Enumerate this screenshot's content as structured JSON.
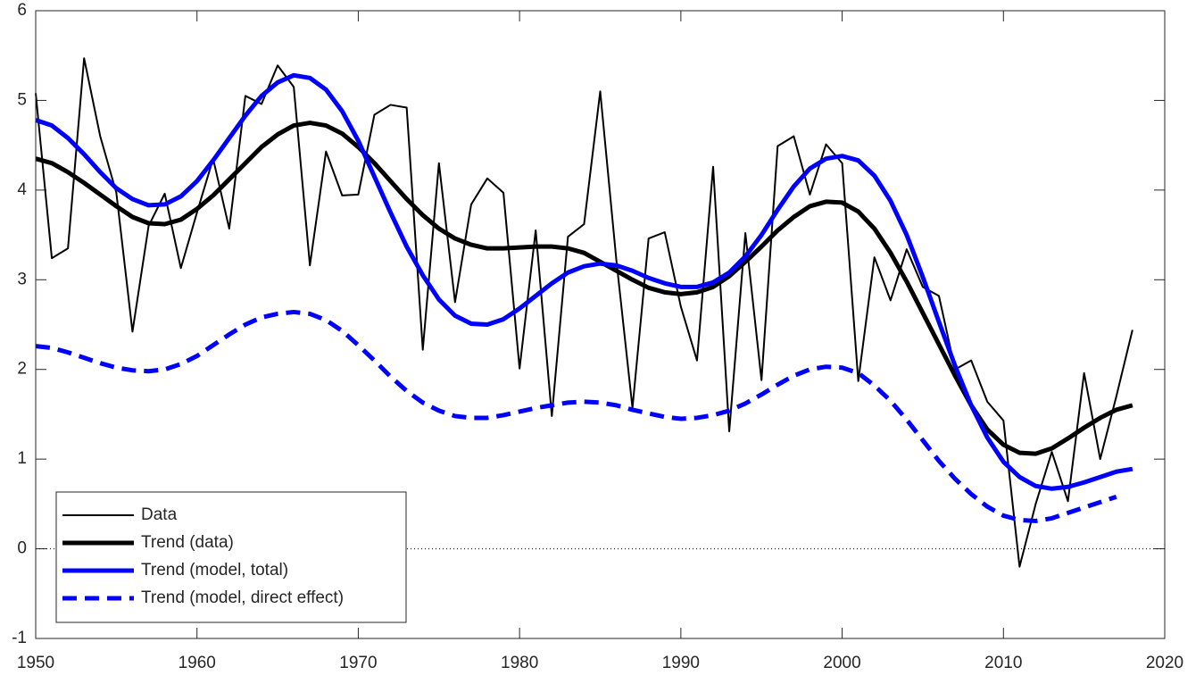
{
  "chart_data": {
    "type": "line",
    "x": [
      1950,
      1951,
      1952,
      1953,
      1954,
      1955,
      1956,
      1957,
      1958,
      1959,
      1960,
      1961,
      1962,
      1963,
      1964,
      1965,
      1966,
      1967,
      1968,
      1969,
      1970,
      1971,
      1972,
      1973,
      1974,
      1975,
      1976,
      1977,
      1978,
      1979,
      1980,
      1981,
      1982,
      1983,
      1984,
      1985,
      1986,
      1987,
      1988,
      1989,
      1990,
      1991,
      1992,
      1993,
      1994,
      1995,
      1996,
      1997,
      1998,
      1999,
      2000,
      2001,
      2002,
      2003,
      2004,
      2005,
      2006,
      2007,
      2008,
      2009,
      2010,
      2011,
      2012,
      2013,
      2014,
      2015,
      2016,
      2017,
      2018
    ],
    "series": [
      {
        "name": "Data",
        "color": "#000000",
        "width": 2,
        "style": "solid",
        "values": [
          5.08,
          3.24,
          3.35,
          5.47,
          4.6,
          3.97,
          2.42,
          3.6,
          3.96,
          3.13,
          3.75,
          4.35,
          3.57,
          5.05,
          4.96,
          5.39,
          5.15,
          3.16,
          4.43,
          3.94,
          3.95,
          4.84,
          4.95,
          4.92,
          2.22,
          4.3,
          2.75,
          3.84,
          4.13,
          3.97,
          2.01,
          3.55,
          1.48,
          3.48,
          3.62,
          5.1,
          3.22,
          1.57,
          3.46,
          3.53,
          2.7,
          2.1,
          4.26,
          1.31,
          3.52,
          1.88,
          4.49,
          4.6,
          3.95,
          4.51,
          4.3,
          1.87,
          3.25,
          2.77,
          3.34,
          2.92,
          2.82,
          2.0,
          2.1,
          1.64,
          1.43,
          -0.2,
          0.5,
          1.08,
          0.53,
          1.96,
          1.0,
          1.7,
          2.44
        ]
      },
      {
        "name": "Trend (data)",
        "color": "#000000",
        "width": 5,
        "style": "solid",
        "values": [
          4.35,
          4.3,
          4.2,
          4.08,
          3.95,
          3.82,
          3.7,
          3.63,
          3.62,
          3.67,
          3.79,
          3.94,
          4.12,
          4.3,
          4.48,
          4.62,
          4.72,
          4.75,
          4.72,
          4.63,
          4.48,
          4.3,
          4.1,
          3.9,
          3.72,
          3.57,
          3.46,
          3.39,
          3.35,
          3.35,
          3.36,
          3.37,
          3.37,
          3.35,
          3.3,
          3.2,
          3.1,
          3.0,
          2.91,
          2.86,
          2.84,
          2.86,
          2.92,
          3.04,
          3.2,
          3.37,
          3.55,
          3.7,
          3.82,
          3.87,
          3.86,
          3.76,
          3.57,
          3.3,
          2.98,
          2.63,
          2.28,
          1.93,
          1.6,
          1.33,
          1.16,
          1.07,
          1.06,
          1.12,
          1.23,
          1.35,
          1.46,
          1.55,
          1.6
        ]
      },
      {
        "name": "Trend (model, total)",
        "color": "#0000ff",
        "width": 5,
        "style": "solid",
        "values": [
          4.78,
          4.72,
          4.58,
          4.4,
          4.2,
          4.02,
          3.9,
          3.83,
          3.84,
          3.93,
          4.1,
          4.33,
          4.58,
          4.83,
          5.05,
          5.2,
          5.28,
          5.25,
          5.12,
          4.88,
          4.55,
          4.15,
          3.75,
          3.37,
          3.05,
          2.78,
          2.6,
          2.51,
          2.5,
          2.56,
          2.68,
          2.82,
          2.96,
          3.08,
          3.15,
          3.18,
          3.16,
          3.1,
          3.02,
          2.96,
          2.92,
          2.92,
          2.97,
          3.08,
          3.26,
          3.5,
          3.78,
          4.04,
          4.24,
          4.35,
          4.38,
          4.33,
          4.16,
          3.88,
          3.5,
          3.03,
          2.53,
          2.04,
          1.6,
          1.24,
          0.97,
          0.8,
          0.7,
          0.67,
          0.69,
          0.74,
          0.8,
          0.86,
          0.89
        ]
      },
      {
        "name": "Trend (model, direct effect)",
        "color": "#0000ff",
        "width": 5,
        "style": "dashed",
        "values": [
          2.26,
          2.24,
          2.19,
          2.13,
          2.07,
          2.02,
          1.99,
          1.98,
          2.0,
          2.06,
          2.15,
          2.27,
          2.39,
          2.5,
          2.58,
          2.62,
          2.64,
          2.62,
          2.55,
          2.43,
          2.27,
          2.1,
          1.92,
          1.76,
          1.63,
          1.54,
          1.48,
          1.46,
          1.46,
          1.49,
          1.53,
          1.57,
          1.6,
          1.63,
          1.64,
          1.63,
          1.6,
          1.55,
          1.51,
          1.47,
          1.45,
          1.46,
          1.49,
          1.54,
          1.62,
          1.72,
          1.83,
          1.93,
          2.0,
          2.03,
          2.02,
          1.96,
          1.82,
          1.65,
          1.44,
          1.21,
          0.98,
          0.78,
          0.61,
          0.47,
          0.37,
          0.32,
          0.31,
          0.34,
          0.4,
          0.46,
          0.52,
          0.58,
          null
        ]
      }
    ],
    "reference_line": 0,
    "xlim": [
      1950,
      2020
    ],
    "xticks": [
      1950,
      1960,
      1970,
      1980,
      1990,
      2000,
      2010,
      2020
    ],
    "ylim": [
      -1,
      6
    ],
    "yticks": [
      -1,
      0,
      1,
      2,
      3,
      4,
      5,
      6
    ],
    "grid": false,
    "legend": "lower left"
  }
}
